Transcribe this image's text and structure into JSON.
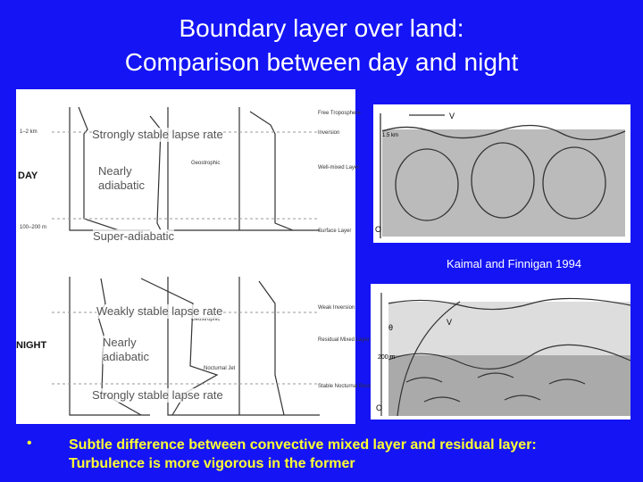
{
  "title": {
    "lines": [
      "Boundary layer over land:",
      "Comparison between day and night"
    ]
  },
  "day_panel": {
    "row_label": "DAY",
    "annotations": [
      "Strongly stable lapse rate",
      "Nearly adiabatic",
      "Super-adiabatic"
    ],
    "height_labels": [
      "1–2 km",
      "100–200 m"
    ],
    "layer_labels": [
      "Free Troposphere",
      "Inversion",
      "Well-mixed Layer",
      "Surface Layer"
    ],
    "profile_labels": [
      "Geostrophic"
    ]
  },
  "night_panel": {
    "row_label": "NIGHT",
    "annotations": [
      "Weakly stable lapse rate",
      "Nearly adiabatic",
      "Strongly stable lapse rate"
    ],
    "layer_labels": [
      "Weak Inversion",
      "Residual Mixed Layer",
      "Stable Nocturnal Boundary Layer"
    ],
    "profile_labels": [
      "Geostrophic",
      "Nocturnal Jet"
    ]
  },
  "day_image": {
    "labels": [
      "V",
      "1.5 km",
      "O"
    ]
  },
  "night_image": {
    "labels": [
      "θ",
      "V",
      "200 m",
      "O"
    ]
  },
  "caption": "Kaimal and Finnigan 1994",
  "bullets": [
    "Subtle difference between convective mixed layer and residual layer: Turbulence is more vigorous in the former"
  ]
}
